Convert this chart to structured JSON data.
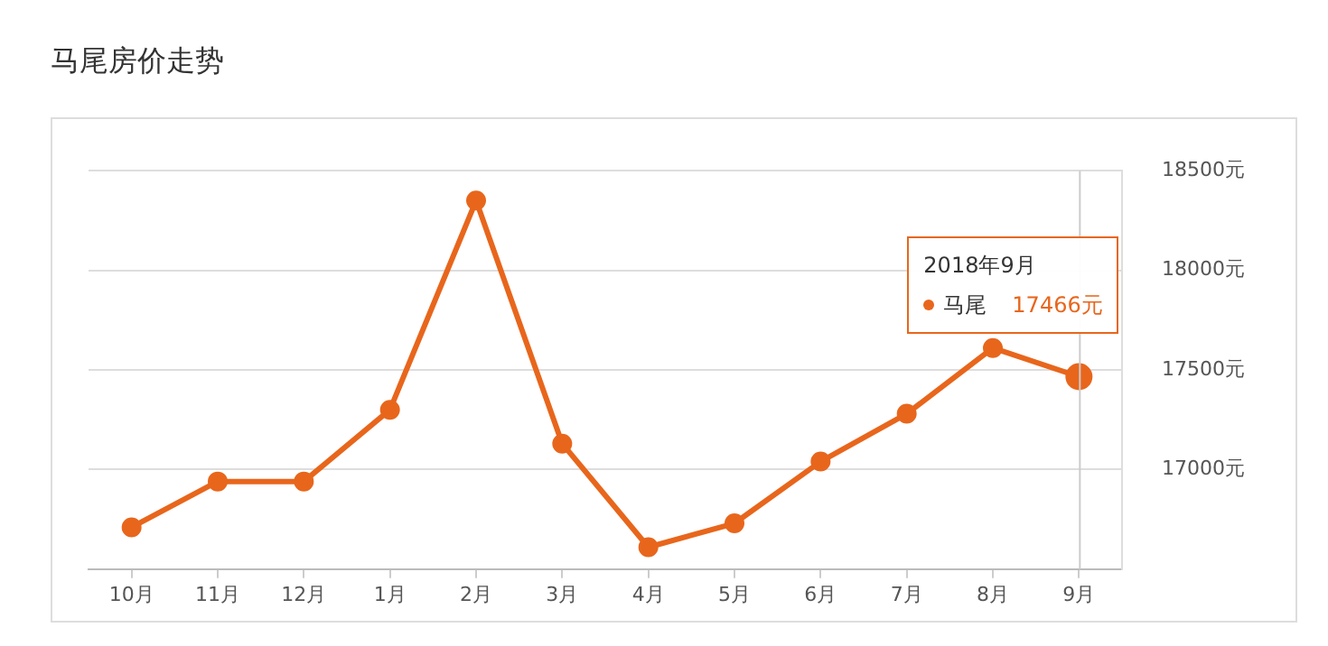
{
  "chart_data": {
    "type": "line",
    "title": "马尾房价走势",
    "categories": [
      "10月",
      "11月",
      "12月",
      "1月",
      "2月",
      "3月",
      "4月",
      "5月",
      "6月",
      "7月",
      "8月",
      "9月"
    ],
    "series": [
      {
        "name": "马尾",
        "color": "#e8661c",
        "values": [
          16710,
          16940,
          16940,
          17300,
          18350,
          17130,
          16610,
          16730,
          17040,
          17280,
          17610,
          17466
        ],
        "value_labels": [
          null,
          null,
          null,
          null,
          null,
          null,
          null,
          null,
          null,
          null,
          null,
          "17466元"
        ]
      }
    ],
    "ylim": [
      16500,
      18500
    ],
    "yticks": [
      {
        "value": 17000,
        "label": "17000元"
      },
      {
        "value": 17500,
        "label": "17500元"
      },
      {
        "value": 18000,
        "label": "18000元"
      },
      {
        "value": 18500,
        "label": "18500元"
      }
    ],
    "annotations": [
      "2018年9月"
    ],
    "ref_lines": [
      {
        "axis": "x",
        "value": "9月",
        "color": "#cccccc"
      }
    ],
    "grid": "y",
    "legend": "top right",
    "marker": "circle",
    "line_style": "solid"
  }
}
